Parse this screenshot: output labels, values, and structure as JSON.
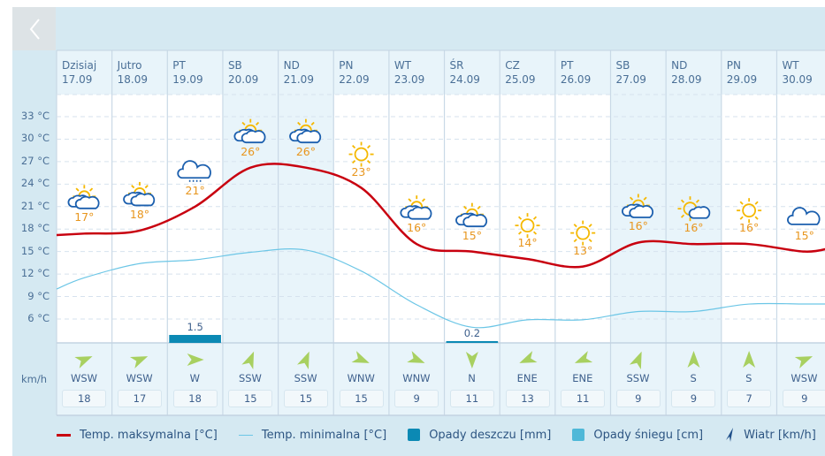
{
  "nav": {
    "back_icon": "chevron-left-icon"
  },
  "y_axis": {
    "labels": [
      "33 °C",
      "30 °C",
      "27 °C",
      "24 °C",
      "21 °C",
      "18 °C",
      "15 °C",
      "12 °C",
      "9 °C",
      "6 °C"
    ],
    "values": [
      33,
      30,
      27,
      24,
      21,
      18,
      15,
      12,
      9,
      6
    ]
  },
  "days": [
    {
      "name": "Dzisiaj",
      "date": "17.09",
      "weekend": false,
      "icon": "partly-cloudy",
      "temp_label": "17°",
      "max": 17.4,
      "min": 11.5,
      "rain": null,
      "wind_dir": "WSW",
      "wind_speed": "18"
    },
    {
      "name": "Jutro",
      "date": "18.09",
      "weekend": false,
      "icon": "partly-cloudy",
      "temp_label": "18°",
      "max": 17.8,
      "min": 13.4,
      "rain": null,
      "wind_dir": "WSW",
      "wind_speed": "17"
    },
    {
      "name": "PT",
      "date": "19.09",
      "weekend": false,
      "icon": "rain-cloud",
      "temp_label": "21°",
      "max": 21,
      "min": 13.9,
      "rain": "1.5",
      "rain_value": 1.5,
      "wind_dir": "W",
      "wind_speed": "18"
    },
    {
      "name": "SB",
      "date": "20.09",
      "weekend": true,
      "icon": "partly-cloudy",
      "temp_label": "26°",
      "max": 26.2,
      "min": 14.9,
      "rain": null,
      "wind_dir": "SSW",
      "wind_speed": "15"
    },
    {
      "name": "ND",
      "date": "21.09",
      "weekend": true,
      "icon": "partly-cloudy",
      "temp_label": "26°",
      "max": 26.2,
      "min": 15.2,
      "rain": null,
      "wind_dir": "SSW",
      "wind_speed": "15"
    },
    {
      "name": "PN",
      "date": "22.09",
      "weekend": false,
      "icon": "sunny",
      "temp_label": "23°",
      "max": 23.5,
      "min": 12.4,
      "rain": null,
      "wind_dir": "WNW",
      "wind_speed": "15"
    },
    {
      "name": "WT",
      "date": "23.09",
      "weekend": false,
      "icon": "partly-cloudy",
      "temp_label": "16°",
      "max": 16,
      "min": 7.9,
      "rain": null,
      "wind_dir": "WNW",
      "wind_speed": "9"
    },
    {
      "name": "ŚR",
      "date": "24.09",
      "weekend": false,
      "icon": "partly-cloudy",
      "temp_label": "15°",
      "max": 15,
      "min": 4.9,
      "rain": "0.2",
      "rain_value": 0.2,
      "wind_dir": "N",
      "wind_speed": "11"
    },
    {
      "name": "CZ",
      "date": "25.09",
      "weekend": false,
      "icon": "sunny",
      "temp_label": "14°",
      "max": 14,
      "min": 5.9,
      "rain": null,
      "wind_dir": "ENE",
      "wind_speed": "13"
    },
    {
      "name": "PT",
      "date": "26.09",
      "weekend": false,
      "icon": "sunny",
      "temp_label": "13°",
      "max": 13,
      "min": 5.9,
      "rain": null,
      "wind_dir": "ENE",
      "wind_speed": "11"
    },
    {
      "name": "SB",
      "date": "27.09",
      "weekend": true,
      "icon": "partly-cloudy",
      "temp_label": "16°",
      "max": 16.2,
      "min": 7,
      "rain": null,
      "wind_dir": "SSW",
      "wind_speed": "9"
    },
    {
      "name": "ND",
      "date": "28.09",
      "weekend": true,
      "icon": "sun-cloud",
      "temp_label": "16°",
      "max": 16,
      "min": 7,
      "rain": null,
      "wind_dir": "S",
      "wind_speed": "9"
    },
    {
      "name": "PN",
      "date": "29.09",
      "weekend": false,
      "icon": "sunny",
      "temp_label": "16°",
      "max": 16,
      "min": 8,
      "rain": null,
      "wind_dir": "S",
      "wind_speed": "7"
    },
    {
      "name": "WT",
      "date": "30.09",
      "weekend": false,
      "icon": "cloudy",
      "temp_label": "15°",
      "max": 15,
      "min": 8,
      "rain": null,
      "wind_dir": "WSW",
      "wind_speed": "9"
    }
  ],
  "wind_unit": "km/h",
  "legend": {
    "max": "Temp. maksymalna [°C]",
    "min": "Temp. minimalna [°C]",
    "rain": "Opady deszczu [mm]",
    "snow": "Opady śniegu [cm]",
    "wind": "Wiatr [km/h]"
  },
  "colors": {
    "max": "#c8000f",
    "min": "#6cc6e6",
    "rain": "#0b89b4",
    "snow": "#4fb8d8",
    "wind_arrow": "#a8d060",
    "wind_legend": "#1f4f8a",
    "sun": "#f5b800",
    "cloud": "#1b5fae",
    "temp_label": "#e8961e"
  }
}
